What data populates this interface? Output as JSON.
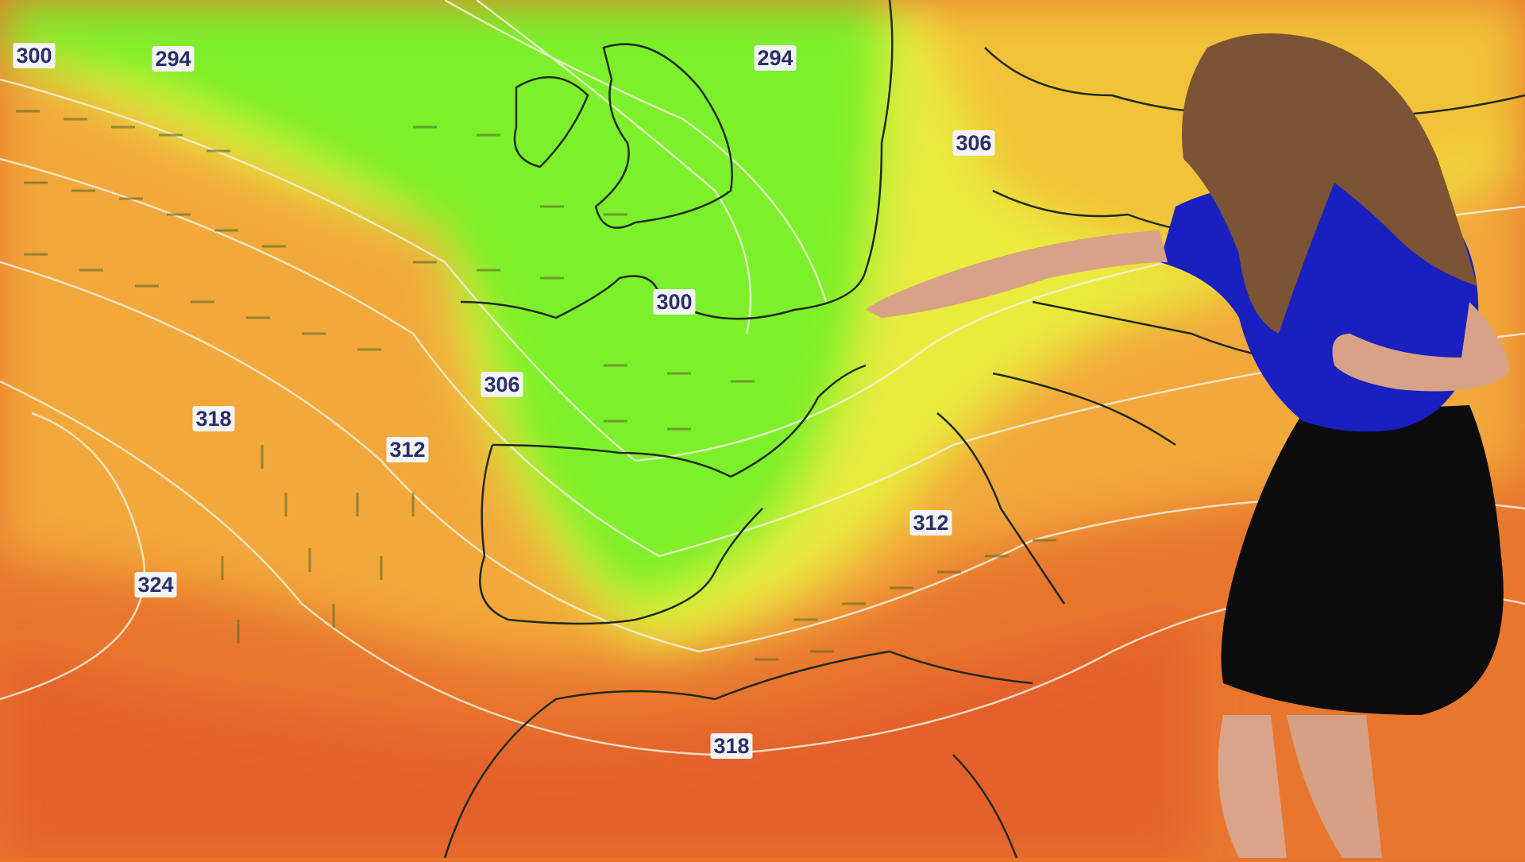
{
  "map": {
    "contour_labels": [
      {
        "value": "300"
      },
      {
        "value": "294"
      },
      {
        "value": "294"
      },
      {
        "value": "306"
      },
      {
        "value": "300"
      },
      {
        "value": "306"
      },
      {
        "value": "318"
      },
      {
        "value": "312"
      },
      {
        "value": "312"
      },
      {
        "value": "324"
      },
      {
        "value": "318"
      }
    ],
    "colors": {
      "low": "#7df22a",
      "mid": "#e6ee3a",
      "high": "#f2a23a",
      "hot": "#e6622a",
      "contour": "#f4f0dc",
      "coast": "#1e2a1e",
      "label_text": "#2a2f6a"
    }
  },
  "presenter": {
    "shirt_color": "#1a1fc0",
    "skirt_color": "#0c0c0c",
    "hair_color": "#7a5434"
  }
}
